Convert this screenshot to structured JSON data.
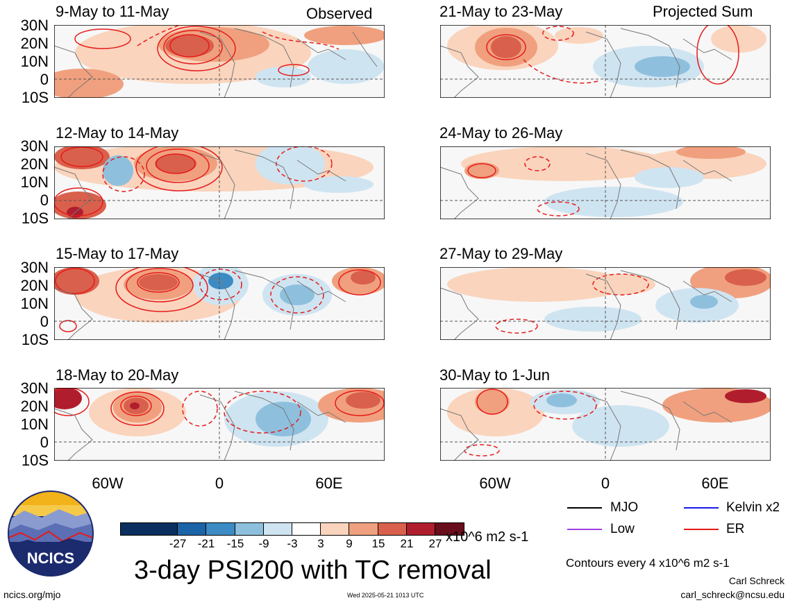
{
  "corner_labels": {
    "left": "Observed",
    "right": "Projected Sum"
  },
  "latitude_labels": [
    "30N",
    "20N",
    "10N",
    "0",
    "10S"
  ],
  "longitude_labels": [
    "60W",
    "0",
    "60E"
  ],
  "panels": [
    {
      "id": "p1",
      "title": "9-May to 11-May"
    },
    {
      "id": "p2",
      "title": "12-May to 14-May"
    },
    {
      "id": "p3",
      "title": "15-May to 17-May"
    },
    {
      "id": "p4",
      "title": "18-May to 20-May"
    },
    {
      "id": "p5",
      "title": "21-May to 23-May"
    },
    {
      "id": "p6",
      "title": "24-May to 26-May"
    },
    {
      "id": "p7",
      "title": "27-May to 29-May"
    },
    {
      "id": "p8",
      "title": "30-May to 1-Jun"
    }
  ],
  "colorbar": {
    "colors": [
      "#0b2f5e",
      "#1c64a8",
      "#3d8bc4",
      "#8ec0de",
      "#cfe4f1",
      "#ffffff",
      "#fad4bd",
      "#f0a07e",
      "#d9604c",
      "#b01e2e",
      "#6a0d1d"
    ],
    "tick_labels": [
      "-27",
      "-21",
      "-15",
      "-9",
      "-3",
      "3",
      "9",
      "15",
      "21",
      "27"
    ],
    "units": "x10^6 m2 s-1"
  },
  "title": "3-day PSI200 with TC removal",
  "legend": [
    {
      "label": "MJO",
      "color": "#000000"
    },
    {
      "label": "Kelvin x2",
      "color": "#1a1ae6"
    },
    {
      "label": "Low",
      "color": "#a040e0"
    },
    {
      "label": "ER",
      "color": "#e61a1a"
    }
  ],
  "contour_note": "Contours every 4 x10^6 m2 s-1",
  "author": "Carl Schreck",
  "email": "carl_schreck@ncsu.edu",
  "website": "ncics.org/mjo",
  "timestamp": "Wed 2025-05-21 1013 UTC",
  "logo_text": "NCICS"
}
